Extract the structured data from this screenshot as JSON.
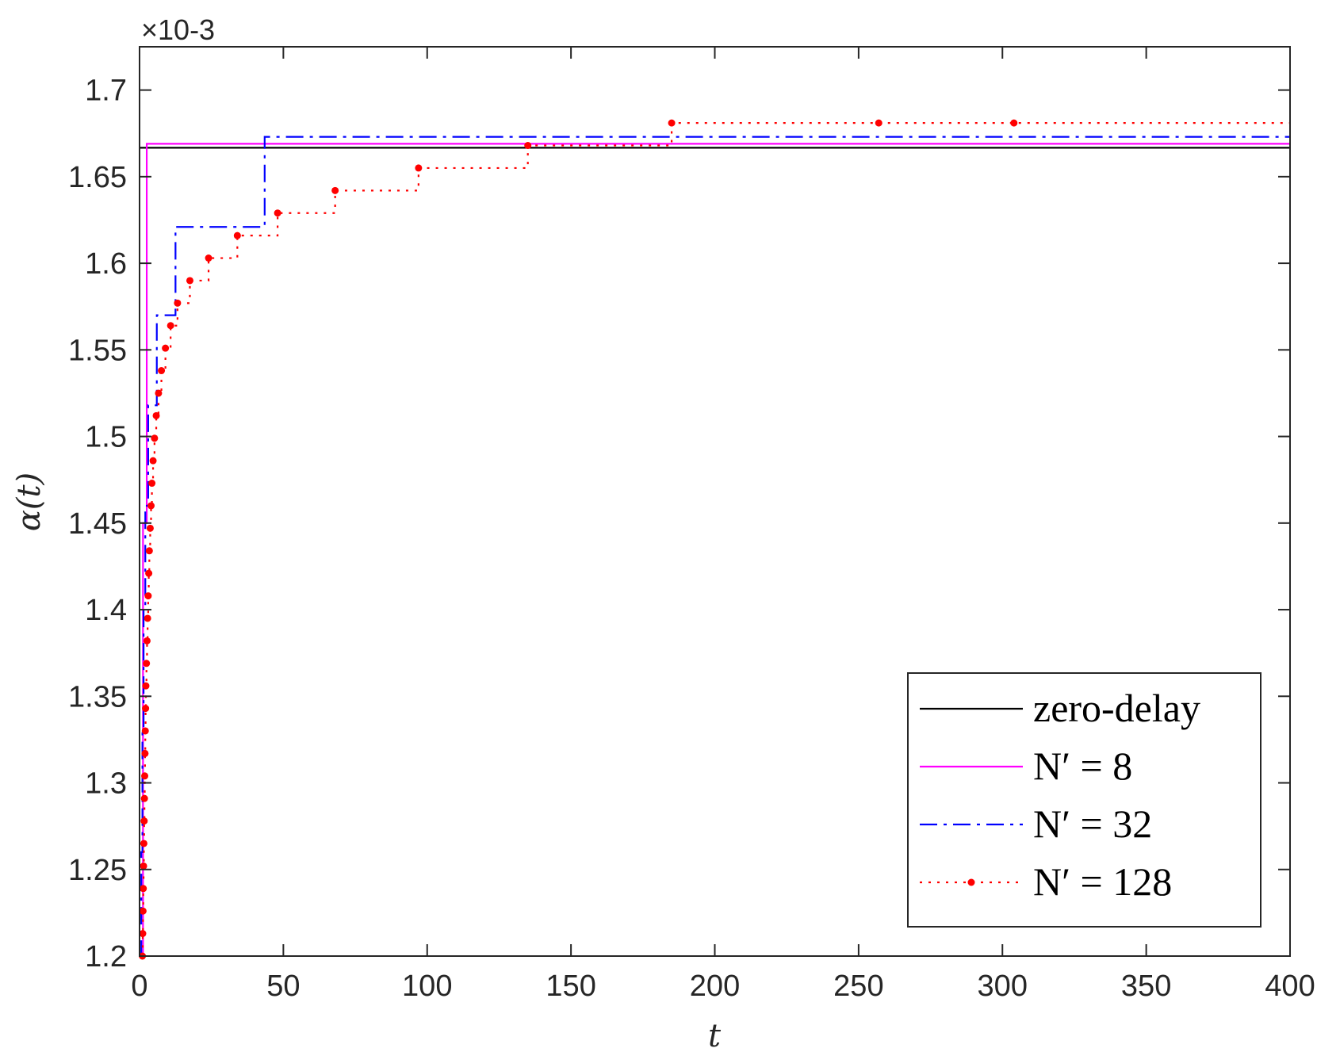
{
  "chart_data": {
    "type": "line",
    "xlabel": "t",
    "ylabel": "α(t)",
    "y_multiplier": "×10-3",
    "xlim": [
      0,
      400
    ],
    "ylim": [
      1.2,
      1.725
    ],
    "x_ticks": [
      0,
      50,
      100,
      150,
      200,
      250,
      300,
      350,
      400
    ],
    "x_tick_labels": [
      "0",
      "50",
      "100",
      "150",
      "200",
      "250",
      "300",
      "350",
      "400"
    ],
    "y_ticks": [
      1.2,
      1.25,
      1.3,
      1.35,
      1.4,
      1.45,
      1.5,
      1.55,
      1.6,
      1.65,
      1.7
    ],
    "y_tick_labels": [
      "1.2",
      "1.25",
      "1.3",
      "1.35",
      "1.4",
      "1.45",
      "1.5",
      "1.55",
      "1.6",
      "1.65",
      "1.7"
    ],
    "grid": false,
    "legend_position": "bottom-right",
    "series": [
      {
        "name": "zero-delay",
        "legend_label": "zero-delay",
        "color": "#000000",
        "style": "solid",
        "marker": "none",
        "points": [
          [
            0,
            1.6667
          ],
          [
            400,
            1.6667
          ]
        ]
      },
      {
        "name": "N' = 8",
        "legend_label": "N′ = 8",
        "color": "#ff00ff",
        "style": "solid",
        "marker": "none",
        "points": [
          [
            0,
            1.2
          ],
          [
            1.2,
            1.2
          ],
          [
            1.2,
            1.45
          ],
          [
            2.5,
            1.45
          ],
          [
            2.5,
            1.669
          ],
          [
            400,
            1.669
          ]
        ]
      },
      {
        "name": "N' = 32",
        "legend_label": "N′ = 32",
        "color": "#0000ff",
        "style": "dashdot",
        "marker": "none",
        "points": [
          [
            0,
            1.2
          ],
          [
            0.6,
            1.2
          ],
          [
            0.6,
            1.26
          ],
          [
            1,
            1.26
          ],
          [
            1,
            1.33
          ],
          [
            1.4,
            1.33
          ],
          [
            1.4,
            1.4
          ],
          [
            2,
            1.4
          ],
          [
            2,
            1.46
          ],
          [
            3,
            1.46
          ],
          [
            3,
            1.518
          ],
          [
            6,
            1.518
          ],
          [
            6,
            1.57
          ],
          [
            12.5,
            1.57
          ],
          [
            12.5,
            1.621
          ],
          [
            43.5,
            1.621
          ],
          [
            43.5,
            1.673
          ],
          [
            400,
            1.673
          ]
        ]
      },
      {
        "name": "N' = 128",
        "legend_label": "N′ = 128",
        "color": "#ff0000",
        "style": "dotted",
        "marker": "dot",
        "markers": [
          [
            1.0,
            1.2
          ],
          [
            1.1,
            1.213
          ],
          [
            1.2,
            1.226
          ],
          [
            1.3,
            1.239
          ],
          [
            1.4,
            1.252
          ],
          [
            1.5,
            1.265
          ],
          [
            1.6,
            1.278
          ],
          [
            1.7,
            1.291
          ],
          [
            1.8,
            1.304
          ],
          [
            1.9,
            1.317
          ],
          [
            2.0,
            1.33
          ],
          [
            2.1,
            1.343
          ],
          [
            2.2,
            1.356
          ],
          [
            2.4,
            1.369
          ],
          [
            2.6,
            1.382
          ],
          [
            2.8,
            1.395
          ],
          [
            3.0,
            1.408
          ],
          [
            3.2,
            1.421
          ],
          [
            3.4,
            1.434
          ],
          [
            3.7,
            1.447
          ],
          [
            4.0,
            1.46
          ],
          [
            4.3,
            1.473
          ],
          [
            4.7,
            1.486
          ],
          [
            5.2,
            1.499
          ],
          [
            5.8,
            1.512
          ],
          [
            6.6,
            1.525
          ],
          [
            7.6,
            1.538
          ],
          [
            9.0,
            1.551
          ],
          [
            10.8,
            1.564
          ],
          [
            13.2,
            1.577
          ],
          [
            17.5,
            1.59
          ],
          [
            24,
            1.603
          ],
          [
            34,
            1.616
          ],
          [
            48,
            1.629
          ],
          [
            68,
            1.642
          ],
          [
            97,
            1.655
          ],
          [
            135,
            1.668
          ],
          [
            185,
            1.681
          ],
          [
            257,
            1.681
          ],
          [
            304,
            1.681
          ]
        ],
        "end_x": 400
      }
    ]
  }
}
